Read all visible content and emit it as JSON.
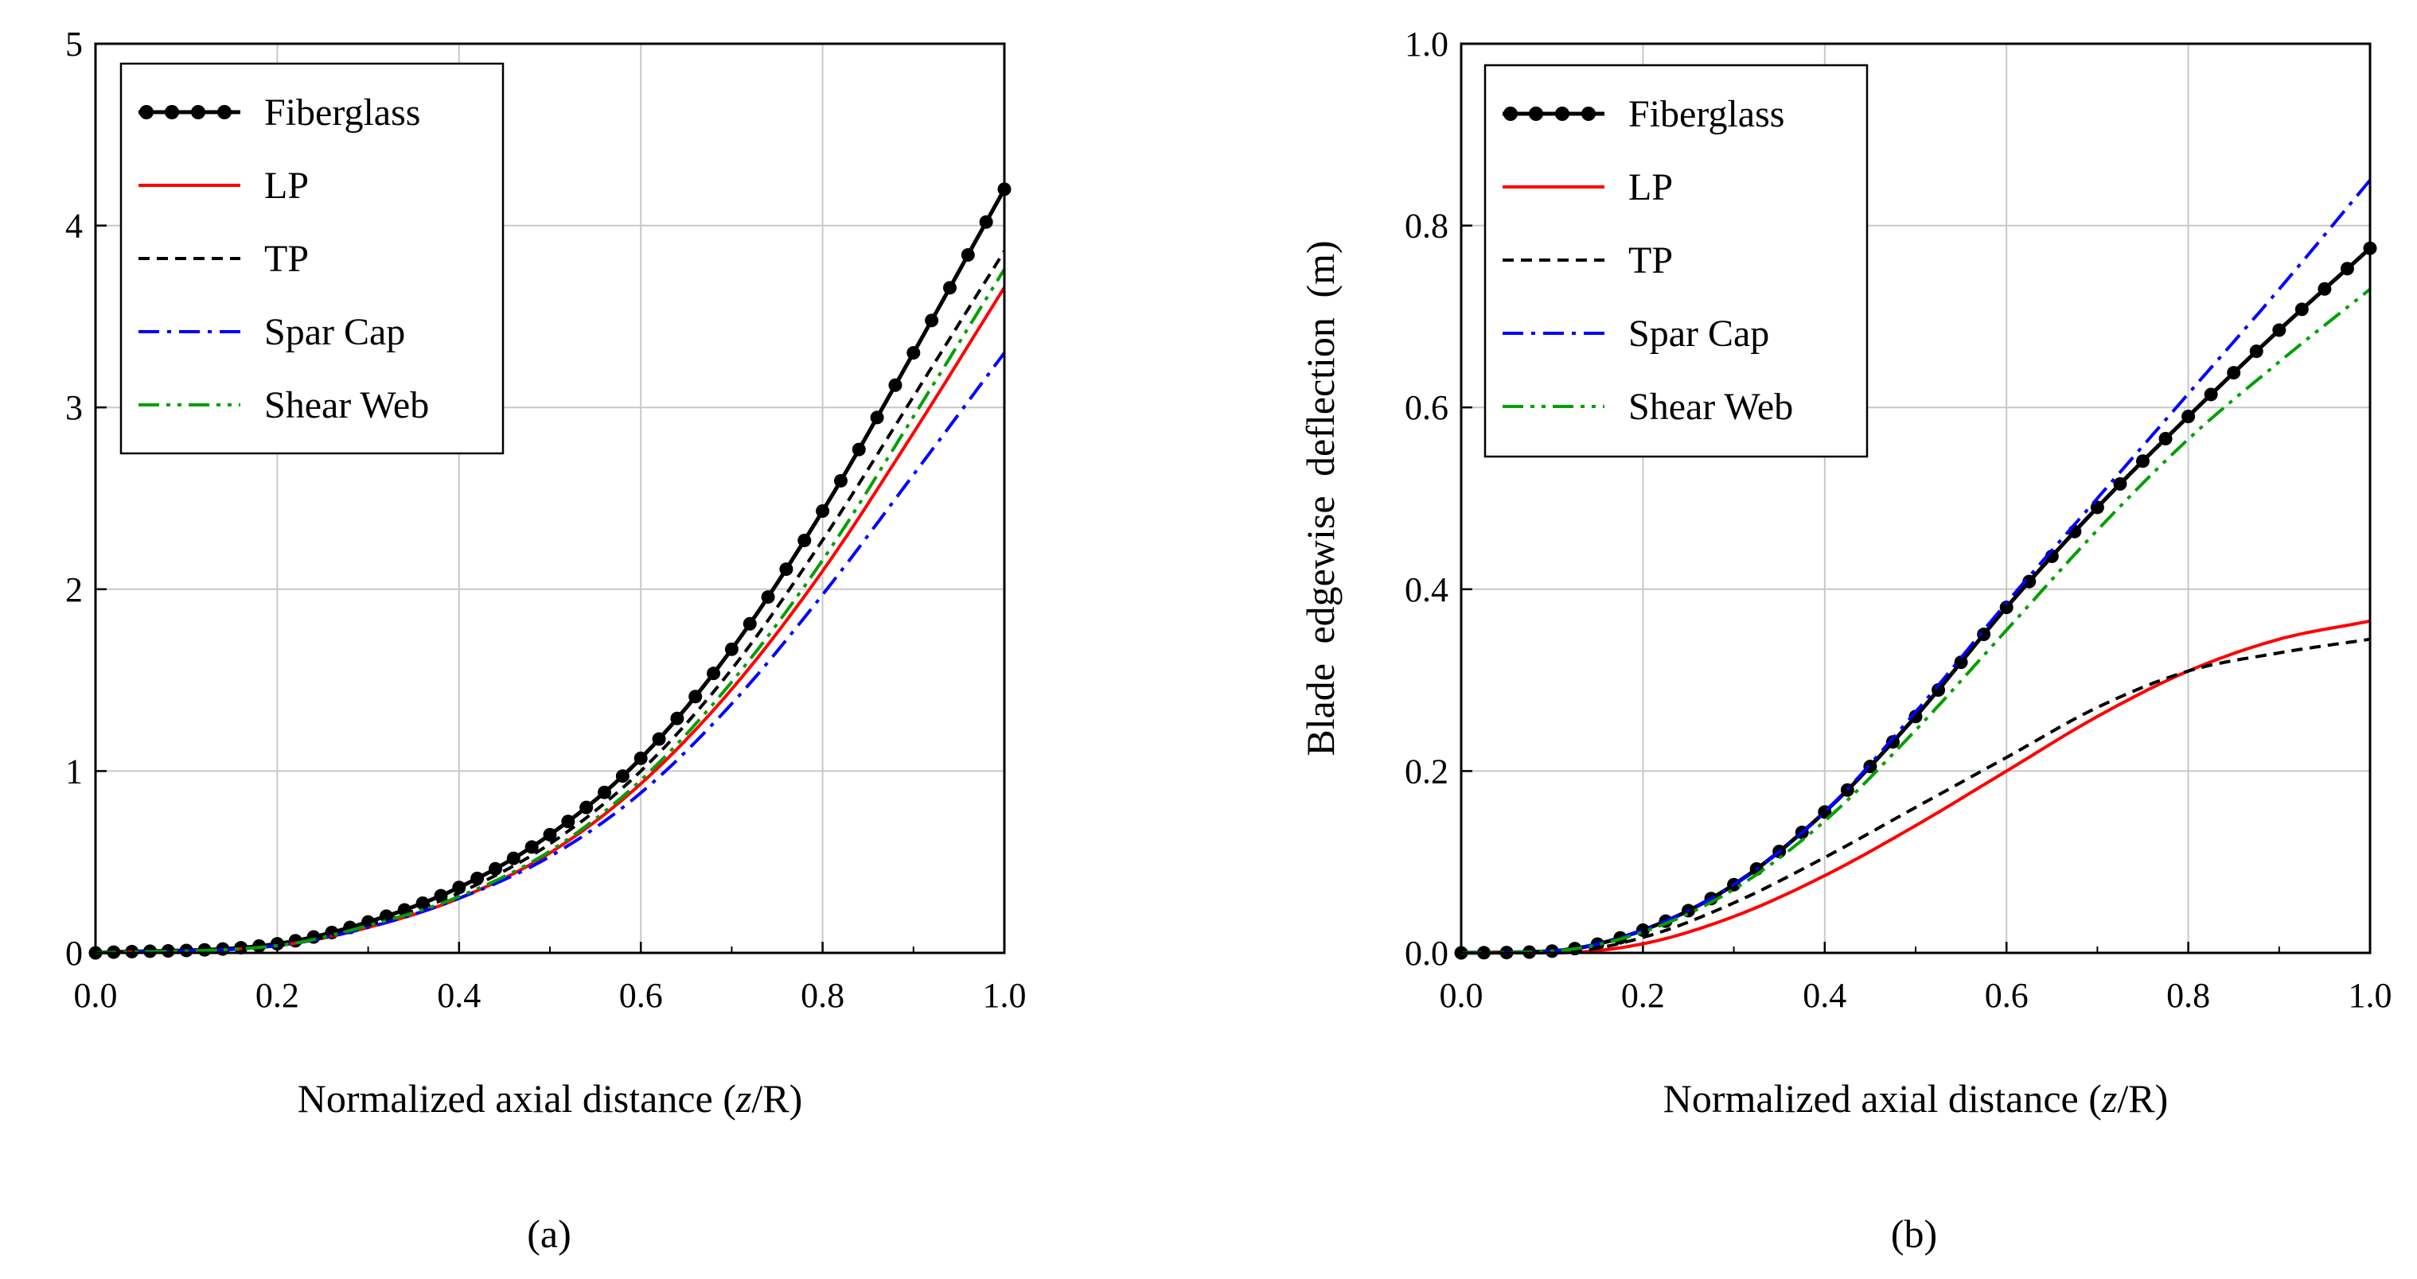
{
  "chart_data": [
    {
      "type": "line",
      "caption": "(a)",
      "xlabel_pre": "Normalized axial distance (",
      "xlabel_italic": "z",
      "xlabel_post": "/R)",
      "ylabel": "",
      "xlim": [
        0,
        1
      ],
      "ylim": [
        0,
        5
      ],
      "xticks": [
        0,
        0.2,
        0.4,
        0.6,
        0.8,
        1.0
      ],
      "xtick_labels": [
        "0.0",
        "0.2",
        "0.4",
        "0.6",
        "0.8",
        "1.0"
      ],
      "yticks": [
        0,
        1,
        2,
        3,
        4,
        5
      ],
      "ytick_labels": [
        "0",
        "1",
        "2",
        "3",
        "4",
        "5"
      ],
      "grid": true,
      "legend_position": "top-left",
      "series": [
        {
          "name": "Fiberglass",
          "color": "#000000",
          "style": "solid",
          "markers": true,
          "x": [
            0,
            0.2,
            0.3,
            0.4,
            0.5,
            0.6,
            0.7,
            0.8,
            0.9,
            1.0
          ],
          "y": [
            0,
            0.05,
            0.17,
            0.36,
            0.65,
            1.07,
            1.67,
            2.43,
            3.3,
            4.2
          ]
        },
        {
          "name": "LP",
          "color": "#ff0000",
          "style": "solid",
          "markers": false,
          "x": [
            0,
            0.2,
            0.3,
            0.4,
            0.5,
            0.6,
            0.7,
            0.8,
            0.9,
            1.0
          ],
          "y": [
            0,
            0.04,
            0.14,
            0.3,
            0.55,
            0.93,
            1.45,
            2.1,
            2.86,
            3.66
          ]
        },
        {
          "name": "TP",
          "color": "#000000",
          "style": "dashed",
          "markers": false,
          "x": [
            0,
            0.2,
            0.3,
            0.4,
            0.5,
            0.6,
            0.7,
            0.8,
            0.9,
            1.0
          ],
          "y": [
            0,
            0.04,
            0.15,
            0.33,
            0.6,
            1.0,
            1.56,
            2.27,
            3.06,
            3.86
          ]
        },
        {
          "name": "Spar Cap",
          "color": "#0000ff",
          "style": "dashdot",
          "markers": false,
          "x": [
            0,
            0.2,
            0.3,
            0.4,
            0.5,
            0.6,
            0.7,
            0.8,
            0.9,
            1.0
          ],
          "y": [
            0,
            0.04,
            0.14,
            0.3,
            0.53,
            0.88,
            1.37,
            1.97,
            2.63,
            3.3
          ]
        },
        {
          "name": "Shear Web",
          "color": "#00a000",
          "style": "dashdotdot",
          "markers": false,
          "x": [
            0,
            0.2,
            0.3,
            0.4,
            0.5,
            0.6,
            0.7,
            0.8,
            0.9,
            1.0
          ],
          "y": [
            0,
            0.04,
            0.15,
            0.31,
            0.56,
            0.95,
            1.49,
            2.16,
            2.95,
            3.76
          ]
        }
      ]
    },
    {
      "type": "line",
      "caption": "(b)",
      "xlabel_pre": "Normalized axial distance (",
      "xlabel_italic": "z",
      "xlabel_post": "/R)",
      "ylabel": "Blade edgewise deflection (m)",
      "xlim": [
        0,
        1
      ],
      "ylim": [
        0,
        1
      ],
      "xticks": [
        0,
        0.2,
        0.4,
        0.6,
        0.8,
        1.0
      ],
      "xtick_labels": [
        "0.0",
        "0.2",
        "0.4",
        "0.6",
        "0.8",
        "1.0"
      ],
      "yticks": [
        0,
        0.2,
        0.4,
        0.6,
        0.8,
        1.0
      ],
      "ytick_labels": [
        "0.0",
        "0.2",
        "0.4",
        "0.6",
        "0.8",
        "1.0"
      ],
      "grid": true,
      "legend_position": "top-left",
      "series": [
        {
          "name": "Fiberglass",
          "color": "#000000",
          "style": "solid",
          "markers": true,
          "x": [
            0,
            0.1,
            0.2,
            0.3,
            0.4,
            0.5,
            0.6,
            0.7,
            0.8,
            0.9,
            1.0
          ],
          "y": [
            0,
            0.002,
            0.025,
            0.075,
            0.155,
            0.26,
            0.38,
            0.49,
            0.59,
            0.685,
            0.775
          ]
        },
        {
          "name": "LP",
          "color": "#ff0000",
          "style": "solid",
          "markers": false,
          "x": [
            0,
            0.1,
            0.2,
            0.3,
            0.4,
            0.5,
            0.6,
            0.7,
            0.8,
            0.9,
            1.0
          ],
          "y": [
            0,
            0,
            0.01,
            0.04,
            0.085,
            0.14,
            0.2,
            0.26,
            0.31,
            0.345,
            0.365
          ]
        },
        {
          "name": "TP",
          "color": "#000000",
          "style": "dashed",
          "markers": false,
          "x": [
            0,
            0.1,
            0.2,
            0.3,
            0.4,
            0.5,
            0.6,
            0.7,
            0.8,
            0.9,
            1.0
          ],
          "y": [
            0,
            0,
            0.017,
            0.055,
            0.105,
            0.16,
            0.215,
            0.27,
            0.31,
            0.33,
            0.345
          ]
        },
        {
          "name": "Spar Cap",
          "color": "#0000ff",
          "style": "dashdot",
          "markers": false,
          "x": [
            0,
            0.1,
            0.2,
            0.3,
            0.4,
            0.5,
            0.6,
            0.7,
            0.8,
            0.9,
            1.0
          ],
          "y": [
            0,
            0.002,
            0.025,
            0.075,
            0.155,
            0.265,
            0.385,
            0.5,
            0.615,
            0.73,
            0.85
          ]
        },
        {
          "name": "Shear Web",
          "color": "#00a000",
          "style": "dashdotdot",
          "markers": false,
          "x": [
            0,
            0.1,
            0.2,
            0.3,
            0.4,
            0.5,
            0.6,
            0.7,
            0.8,
            0.9,
            1.0
          ],
          "y": [
            0,
            0.002,
            0.023,
            0.07,
            0.145,
            0.245,
            0.355,
            0.465,
            0.565,
            0.65,
            0.73
          ]
        }
      ]
    }
  ]
}
